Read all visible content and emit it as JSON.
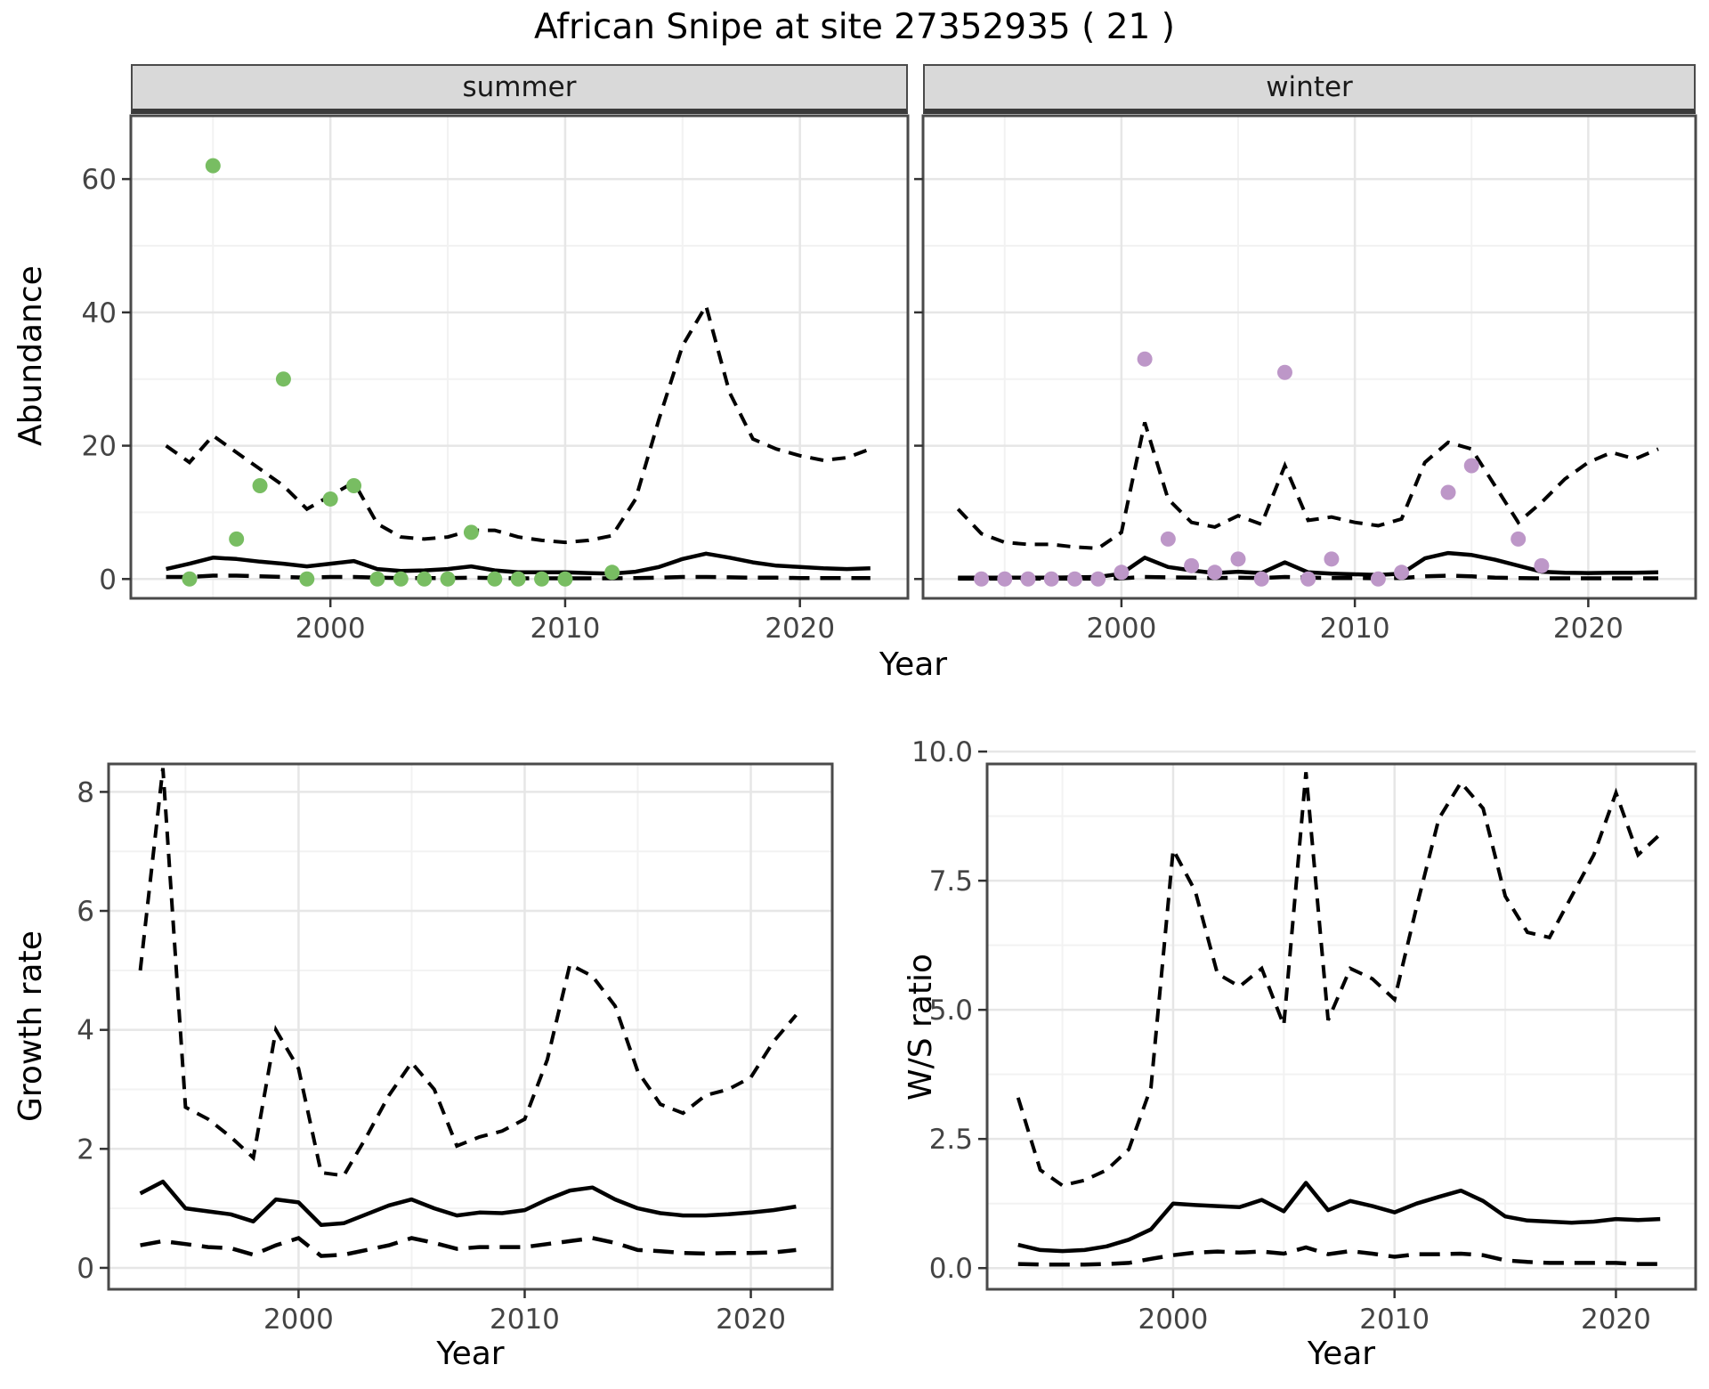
{
  "title": "African Snipe at site 27352935 ( 21 )",
  "facets": [
    "summer",
    "winter"
  ],
  "labels": {
    "y_abundance": "Abundance",
    "y_growth": "Growth rate",
    "y_ws": "W/S ratio",
    "x_year_top": "Year",
    "x_year_growth": "Year",
    "x_year_ws": "Year"
  },
  "colors": {
    "summer_dot": "#78bd62",
    "winter_dot": "#bd97c8",
    "line": "#000000",
    "strip_bg": "#d9d9d9",
    "grid_major": "#e6e6e6",
    "grid_minor": "#f2f2f2",
    "panel_border": "#4a4a4a",
    "tick_text": "#444444"
  },
  "chart_data": [
    {
      "id": "abundance-summer",
      "type": "scatter+line",
      "facet": "summer",
      "title": "African Snipe at site 27352935 ( 21 )",
      "xlabel": "Year",
      "ylabel": "Abundance",
      "xlim": [
        1991.5,
        2024.6
      ],
      "ylim": [
        -2.9,
        69.5
      ],
      "xticks": [
        2000,
        2010,
        2020
      ],
      "xtick_labels": [
        "2000",
        "2010",
        "2020"
      ],
      "xminor": [
        1995,
        2005,
        2015
      ],
      "yticks": [
        0,
        20,
        40,
        60
      ],
      "ytick_labels": [
        "0",
        "20",
        "40",
        "60"
      ],
      "yminor": [
        10,
        30,
        50
      ],
      "legend": "none",
      "grid": true,
      "series": {
        "years": [
          1993,
          1994,
          1995,
          1996,
          1997,
          1998,
          1999,
          2000,
          2001,
          2002,
          2003,
          2004,
          2005,
          2006,
          2007,
          2008,
          2009,
          2010,
          2011,
          2012,
          2013,
          2014,
          2015,
          2016,
          2017,
          2018,
          2019,
          2020,
          2021,
          2022,
          2023
        ],
        "mean": [
          1.5,
          2.3,
          3.2,
          3.0,
          2.6,
          2.3,
          1.9,
          2.3,
          2.7,
          1.5,
          1.2,
          1.3,
          1.5,
          1.9,
          1.3,
          1.0,
          1.0,
          1.0,
          0.9,
          0.8,
          1.1,
          1.8,
          3.0,
          3.8,
          3.2,
          2.5,
          2.0,
          1.8,
          1.6,
          1.5,
          1.6
        ],
        "lower": [
          0.3,
          0.3,
          0.5,
          0.5,
          0.4,
          0.3,
          0.2,
          0.3,
          0.3,
          0.2,
          0.15,
          0.15,
          0.15,
          0.2,
          0.15,
          0.1,
          0.1,
          0.1,
          0.1,
          0.1,
          0.15,
          0.2,
          0.3,
          0.3,
          0.25,
          0.2,
          0.2,
          0.15,
          0.15,
          0.15,
          0.15
        ],
        "upper": [
          20,
          17.5,
          21.5,
          19,
          16.5,
          14,
          10.5,
          12.5,
          14.5,
          8.3,
          6.3,
          6,
          6.3,
          7.3,
          7.3,
          6.3,
          5.8,
          5.5,
          5.8,
          6.5,
          12,
          24,
          35,
          41,
          28,
          21,
          19.5,
          18.5,
          17.8,
          18.2,
          19.5
        ]
      },
      "points": {
        "years": [
          1994,
          1995,
          1996,
          1997,
          1998,
          1999,
          2000,
          2001,
          2002,
          2003,
          2004,
          2005,
          2006,
          2007,
          2008,
          2009,
          2010,
          2012
        ],
        "values": [
          0,
          62,
          6,
          14,
          30,
          0,
          12,
          14,
          0,
          0,
          0,
          0,
          7,
          0,
          0,
          0,
          0,
          1
        ]
      }
    },
    {
      "id": "abundance-winter",
      "type": "scatter+line",
      "facet": "winter",
      "xlabel": "Year",
      "ylabel": "Abundance",
      "xlim": [
        1991.5,
        2024.6
      ],
      "ylim": [
        -2.9,
        69.5
      ],
      "xticks": [
        2000,
        2010,
        2020
      ],
      "xtick_labels": [
        "2000",
        "2010",
        "2020"
      ],
      "xminor": [
        1995,
        2005,
        2015
      ],
      "yticks": [
        0,
        20,
        40,
        60
      ],
      "ytick_labels": [],
      "yminor": [
        10,
        30,
        50
      ],
      "legend": "none",
      "grid": true,
      "series": {
        "years": [
          1993,
          1994,
          1995,
          1996,
          1997,
          1998,
          1999,
          2000,
          2001,
          2002,
          2003,
          2004,
          2005,
          2006,
          2007,
          2008,
          2009,
          2010,
          2011,
          2012,
          2013,
          2014,
          2015,
          2016,
          2017,
          2018,
          2019,
          2020,
          2021,
          2022,
          2023
        ],
        "mean": [
          0.2,
          0.2,
          0.2,
          0.2,
          0.2,
          0.25,
          0.3,
          0.8,
          3.2,
          1.8,
          1.3,
          0.9,
          1.1,
          0.9,
          2.5,
          1.0,
          0.8,
          0.7,
          0.6,
          0.8,
          3.1,
          3.9,
          3.6,
          2.9,
          2.0,
          1.1,
          0.95,
          0.9,
          0.95,
          0.95,
          1.0
        ],
        "lower": [
          0.05,
          0.05,
          0.05,
          0.05,
          0.05,
          0.05,
          0.05,
          0.1,
          0.3,
          0.25,
          0.2,
          0.15,
          0.2,
          0.15,
          0.3,
          0.2,
          0.15,
          0.15,
          0.1,
          0.15,
          0.4,
          0.5,
          0.4,
          0.2,
          0.15,
          0.1,
          0.1,
          0.1,
          0.1,
          0.1,
          0.1
        ],
        "upper": [
          10.5,
          6.8,
          5.5,
          5.2,
          5.2,
          4.8,
          4.6,
          7,
          23.5,
          12,
          8.5,
          7.8,
          9.5,
          8.2,
          17,
          8.8,
          9.3,
          8.5,
          8,
          9,
          17.5,
          20.5,
          19.5,
          14,
          8.5,
          11.5,
          15,
          17.5,
          19,
          18,
          19.5
        ]
      },
      "points": {
        "years": [
          1994,
          1995,
          1996,
          1997,
          1998,
          1999,
          2000,
          2001,
          2002,
          2003,
          2004,
          2005,
          2006,
          2007,
          2008,
          2009,
          2011,
          2012,
          2014,
          2015,
          2017,
          2018
        ],
        "values": [
          0,
          0,
          0,
          0,
          0,
          0,
          1,
          33,
          6,
          2,
          1,
          3,
          0,
          31,
          0,
          3,
          0,
          1,
          13,
          17,
          6,
          2
        ]
      }
    },
    {
      "id": "growth-rate",
      "type": "line",
      "xlabel": "Year",
      "ylabel": "Growth rate",
      "xlim": [
        1991.6,
        2023.6
      ],
      "ylim": [
        -0.36,
        8.47
      ],
      "xticks": [
        2000,
        2010,
        2020
      ],
      "xtick_labels": [
        "2000",
        "2010",
        "2020"
      ],
      "xminor": [
        1995,
        2005,
        2015
      ],
      "yticks": [
        0,
        2,
        4,
        6,
        8
      ],
      "ytick_labels": [
        "0",
        "2",
        "4",
        "6",
        "8"
      ],
      "yminor": [
        1,
        3,
        5,
        7
      ],
      "legend": "none",
      "grid": true,
      "series": {
        "years": [
          1993,
          1994,
          1995,
          1996,
          1997,
          1998,
          1999,
          2000,
          2001,
          2002,
          2003,
          2004,
          2005,
          2006,
          2007,
          2008,
          2009,
          2010,
          2011,
          2012,
          2013,
          2014,
          2015,
          2016,
          2017,
          2018,
          2019,
          2020,
          2021,
          2022
        ],
        "mean": [
          1.25,
          1.45,
          1.0,
          0.95,
          0.9,
          0.78,
          1.15,
          1.1,
          0.72,
          0.75,
          0.9,
          1.05,
          1.15,
          1.0,
          0.88,
          0.93,
          0.92,
          0.97,
          1.15,
          1.3,
          1.35,
          1.15,
          1.0,
          0.92,
          0.88,
          0.88,
          0.9,
          0.93,
          0.97,
          1.03
        ],
        "lower": [
          0.38,
          0.45,
          0.4,
          0.35,
          0.33,
          0.22,
          0.38,
          0.5,
          0.2,
          0.22,
          0.3,
          0.38,
          0.5,
          0.42,
          0.32,
          0.35,
          0.35,
          0.35,
          0.4,
          0.45,
          0.5,
          0.42,
          0.3,
          0.28,
          0.25,
          0.24,
          0.25,
          0.25,
          0.26,
          0.3
        ],
        "upper": [
          5.0,
          8.4,
          2.7,
          2.5,
          2.2,
          1.85,
          4.0,
          3.35,
          1.6,
          1.55,
          2.2,
          2.9,
          3.45,
          3.0,
          2.05,
          2.2,
          2.3,
          2.5,
          3.5,
          5.1,
          4.9,
          4.4,
          3.3,
          2.75,
          2.6,
          2.9,
          3.0,
          3.2,
          3.8,
          4.25
        ]
      }
    },
    {
      "id": "ws-ratio",
      "type": "line",
      "xlabel": "Year",
      "ylabel": "W/S ratio",
      "xlim": [
        1991.6,
        2023.6
      ],
      "ylim": [
        -0.41,
        9.76
      ],
      "xticks": [
        2000,
        2010,
        2020
      ],
      "xtick_labels": [
        "2000",
        "2010",
        "2020"
      ],
      "xminor": [
        1995,
        2005,
        2015
      ],
      "yticks": [
        0,
        2.5,
        5,
        7.5,
        10
      ],
      "ytick_labels": [
        "0.0",
        "2.5",
        "5.0",
        "7.5",
        "10.0"
      ],
      "yminor": [
        1.25,
        3.75,
        6.25,
        8.75
      ],
      "legend": "none",
      "grid": true,
      "series": {
        "years": [
          1993,
          1994,
          1995,
          1996,
          1997,
          1998,
          1999,
          2000,
          2001,
          2002,
          2003,
          2004,
          2005,
          2006,
          2007,
          2008,
          2009,
          2010,
          2011,
          2012,
          2013,
          2014,
          2015,
          2016,
          2017,
          2018,
          2019,
          2020,
          2021,
          2022
        ],
        "mean": [
          0.45,
          0.35,
          0.33,
          0.35,
          0.42,
          0.55,
          0.75,
          1.25,
          1.22,
          1.2,
          1.18,
          1.32,
          1.1,
          1.65,
          1.12,
          1.3,
          1.2,
          1.08,
          1.25,
          1.38,
          1.5,
          1.3,
          1.0,
          0.92,
          0.9,
          0.88,
          0.9,
          0.95,
          0.93,
          0.95
        ],
        "lower": [
          0.08,
          0.07,
          0.07,
          0.07,
          0.08,
          0.1,
          0.18,
          0.25,
          0.3,
          0.32,
          0.3,
          0.32,
          0.28,
          0.4,
          0.27,
          0.33,
          0.28,
          0.22,
          0.27,
          0.27,
          0.28,
          0.25,
          0.15,
          0.12,
          0.1,
          0.1,
          0.1,
          0.1,
          0.08,
          0.08
        ],
        "upper": [
          3.3,
          1.9,
          1.6,
          1.7,
          1.9,
          2.3,
          3.5,
          8.1,
          7.3,
          5.7,
          5.45,
          5.8,
          4.7,
          9.6,
          4.8,
          5.8,
          5.6,
          5.2,
          7.0,
          8.7,
          9.4,
          8.9,
          7.2,
          6.5,
          6.4,
          7.2,
          8.0,
          9.2,
          8.0,
          8.4
        ]
      }
    }
  ]
}
